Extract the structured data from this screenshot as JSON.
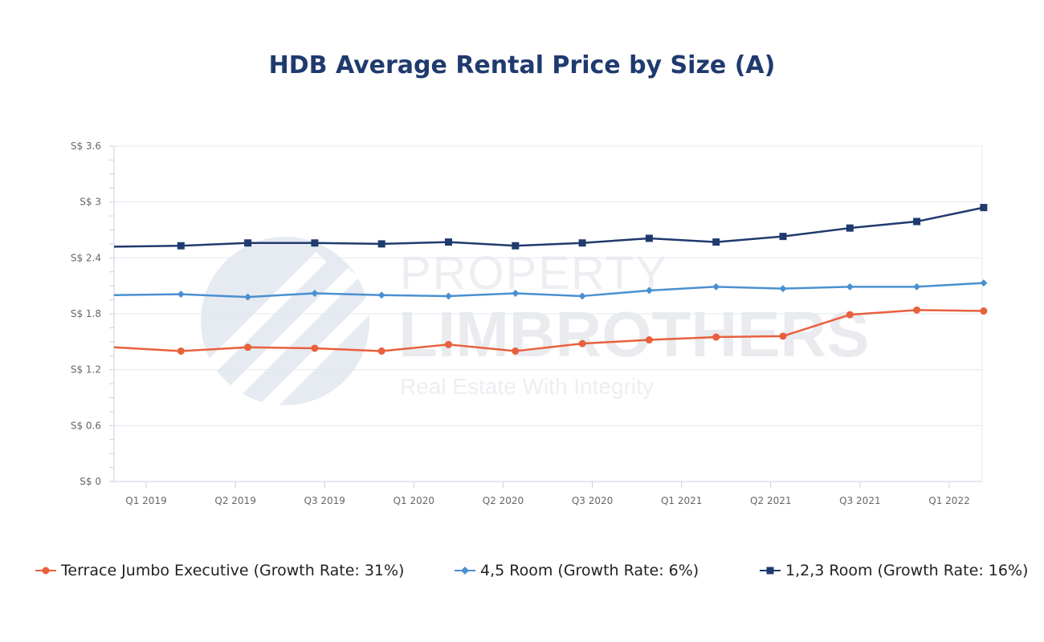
{
  "chart_data": {
    "type": "line",
    "title": "HDB Average Rental Price by Size (A)",
    "xlabel": "",
    "ylabel": "",
    "x_tick_labels": [
      "Q1 2019",
      "Q2 2019",
      "Q3 2019",
      "Q1 2020",
      "Q2 2020",
      "Q3 2020",
      "Q1 2021",
      "Q2 2021",
      "Q3 2021",
      "Q1 2022"
    ],
    "y_tick_labels": [
      "S$ 0",
      "S$ 0.6",
      "S$ 1.2",
      "S$ 1.8",
      "S$ 2.4",
      "S$ 3",
      "S$ 3.6"
    ],
    "ylim": [
      0,
      3.6
    ],
    "grid": "horizontal",
    "legend_position": "bottom",
    "series": [
      {
        "name": "Terrace Jumbo Executive (Growth Rate: 31%)",
        "color": "#e8603c",
        "marker": "circle",
        "values": [
          1.44,
          1.4,
          1.44,
          1.43,
          1.4,
          1.47,
          1.4,
          1.48,
          1.52,
          1.55,
          1.56,
          1.79,
          1.84,
          1.83
        ]
      },
      {
        "name": "4,5 Room (Growth Rate: 6%)",
        "color": "#4a90d0",
        "marker": "diamond",
        "values": [
          2.0,
          2.01,
          1.98,
          2.02,
          2.0,
          1.99,
          2.02,
          1.99,
          2.05,
          2.09,
          2.07,
          2.09,
          2.09,
          2.13
        ]
      },
      {
        "name": "1,2,3 Room (Growth Rate: 16%)",
        "color": "#1f3a6e",
        "marker": "square",
        "values": [
          2.52,
          2.53,
          2.56,
          2.56,
          2.55,
          2.57,
          2.53,
          2.56,
          2.61,
          2.57,
          2.63,
          2.72,
          2.79,
          2.94
        ]
      }
    ]
  },
  "watermark": {
    "line1": "PROPERTY",
    "line2": "LIMBROTHERS",
    "line3": "Real Estate With Integrity"
  }
}
